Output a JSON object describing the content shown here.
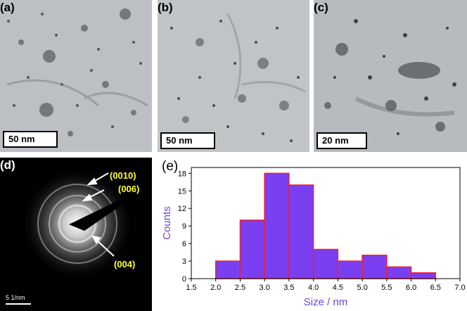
{
  "panels": {
    "a": {
      "label": "(a)",
      "scale": "50 nm"
    },
    "b": {
      "label": "(b)",
      "scale": "50 nm"
    },
    "c": {
      "label": "(c)",
      "scale": "20 nm"
    },
    "d": {
      "label": "(d)",
      "scale": "5 1/nm",
      "rings": [
        "(0010)",
        "(006)",
        "(004)"
      ]
    },
    "e": {
      "label": "(e)"
    }
  },
  "chart_data": {
    "type": "bar",
    "xlabel": "Size / nm",
    "ylabel": "Counts",
    "xlim": [
      1.5,
      7.0
    ],
    "ylim": [
      0,
      19
    ],
    "xticks": [
      "1.5",
      "2.0",
      "2.5",
      "3.0",
      "3.5",
      "4.0",
      "4.5",
      "5.0",
      "5.5",
      "6.0",
      "6.5",
      "7.0"
    ],
    "yticks": [
      "0",
      "3",
      "6",
      "9",
      "12",
      "15",
      "18"
    ],
    "bins": [
      {
        "x0": 2.0,
        "x1": 2.5,
        "value": 3
      },
      {
        "x0": 2.5,
        "x1": 3.0,
        "value": 10
      },
      {
        "x0": 3.0,
        "x1": 3.5,
        "value": 18
      },
      {
        "x0": 3.5,
        "x1": 4.0,
        "value": 16
      },
      {
        "x0": 4.0,
        "x1": 4.5,
        "value": 5
      },
      {
        "x0": 4.5,
        "x1": 5.0,
        "value": 3
      },
      {
        "x0": 5.0,
        "x1": 5.5,
        "value": 4
      },
      {
        "x0": 5.5,
        "x1": 6.0,
        "value": 2
      },
      {
        "x0": 6.0,
        "x1": 6.5,
        "value": 1
      }
    ],
    "bar_color": "#7b3ff2",
    "bar_edge": "#e8203a",
    "axis_label_color": "#6a45d8",
    "grid": false
  }
}
